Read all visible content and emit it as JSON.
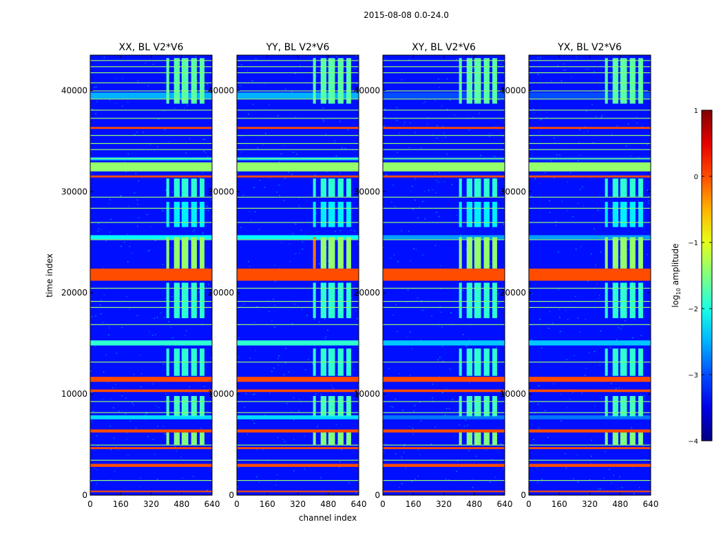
{
  "chart_data": {
    "type": "heatmap",
    "suptitle": "2015-08-08 0.0-24.0",
    "xlabel": "channel index",
    "ylabel": "time index",
    "xlim": [
      0,
      640
    ],
    "ylim": [
      0,
      43500
    ],
    "xticks": [
      0,
      160,
      320,
      480,
      640
    ],
    "xtick_labels": [
      "0",
      "160",
      "320",
      "480",
      "640"
    ],
    "yticks": [
      0,
      10000,
      20000,
      30000,
      40000
    ],
    "ytick_labels": [
      "0",
      "10000",
      "20000",
      "30000",
      "40000"
    ],
    "colorbar": {
      "label": "log10 amplitude",
      "label_main": "log",
      "label_sub": "10",
      "label_rest": " amplitude",
      "range": [
        -4,
        1
      ],
      "ticks": [
        -4,
        -3,
        -2,
        -1,
        0,
        1
      ],
      "tick_labels": [
        "−4",
        "−3",
        "−2",
        "−1",
        "0",
        "1"
      ],
      "colormap": "jet"
    },
    "panels": [
      {
        "title": "XX, BL V2*V6",
        "pol": "XX"
      },
      {
        "title": "YY, BL V2*V6",
        "pol": "YY"
      },
      {
        "title": "XY, BL V2*V6",
        "pol": "XY"
      },
      {
        "title": "YX, BL V2*V6",
        "pol": "YX"
      }
    ],
    "background_level": -3.3,
    "flagged_bands": [
      {
        "t0": 300,
        "t1": 450,
        "level": 0.0
      },
      {
        "t0": 2800,
        "t1": 3100,
        "level": 0.0
      },
      {
        "t0": 4550,
        "t1": 4750,
        "level": 0.0
      },
      {
        "t0": 6200,
        "t1": 6500,
        "level": 0.0
      },
      {
        "t0": 10200,
        "t1": 10450,
        "level": 0.0
      },
      {
        "t0": 11200,
        "t1": 11700,
        "level": 0.0
      },
      {
        "t0": 21200,
        "t1": 22400,
        "level": 0.0
      },
      {
        "t0": 31400,
        "t1": 31600,
        "level": 0.0
      },
      {
        "t0": 32000,
        "t1": 32900,
        "level": -1.4
      },
      {
        "t0": 36200,
        "t1": 36400,
        "level": 0.0
      }
    ],
    "line_times": [
      1500,
      3500,
      5000,
      8200,
      9300,
      13200,
      16900,
      18600,
      19200,
      20500,
      25300,
      27000,
      28400,
      29500,
      33300,
      34200,
      34800,
      35600,
      37300,
      38100,
      39200,
      40000,
      40800,
      41800,
      42400,
      43000
    ],
    "line_level": -1.4,
    "enhanced_background": [
      {
        "t0": 7500,
        "t1": 7900,
        "level": -2.3
      },
      {
        "t0": 14800,
        "t1": 15300,
        "level": -1.9
      },
      {
        "t0": 25300,
        "t1": 25700,
        "level": -2.1
      },
      {
        "t0": 33100,
        "t1": 33400,
        "level": -2.4
      },
      {
        "t0": 39200,
        "t1": 39800,
        "level": -2.5
      }
    ],
    "rfi_channel_blocks": [
      [
        400,
        415
      ],
      [
        440,
        470
      ],
      [
        480,
        515
      ],
      [
        530,
        560
      ],
      [
        575,
        600
      ]
    ],
    "rfi_time_blocks": [
      {
        "t0": 5000,
        "t1": 6200,
        "level": -1.5
      },
      {
        "t0": 7800,
        "t1": 9800,
        "level": -1.8
      },
      {
        "t0": 11800,
        "t1": 14500,
        "level": -1.9
      },
      {
        "t0": 17500,
        "t1": 21000,
        "level": -1.9
      },
      {
        "t0": 22400,
        "t1": 25500,
        "level": -1.4
      },
      {
        "t0": 26500,
        "t1": 29000,
        "level": -2.2
      },
      {
        "t0": 29500,
        "t1": 31300,
        "level": -1.9
      },
      {
        "t0": 38700,
        "t1": 43200,
        "level": -1.7
      }
    ]
  }
}
